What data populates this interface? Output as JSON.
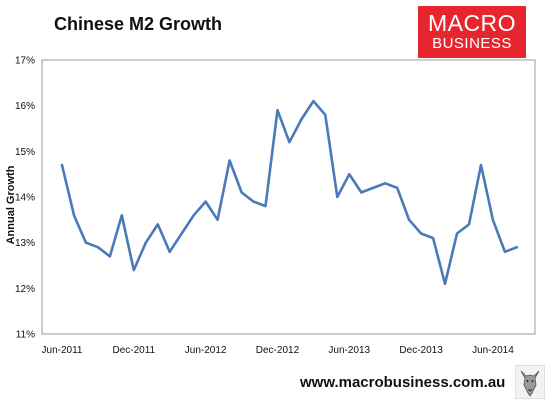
{
  "header": {
    "title": "Chinese M2 Growth",
    "logo_line1": "MACRO",
    "logo_line2": "BUSINESS"
  },
  "footer": {
    "website": "www.macrobusiness.com.au",
    "logo_icon": "wolf-icon"
  },
  "colors": {
    "series": "#4a7ab8",
    "logo_bg": "#e5262e",
    "axis": "#999999"
  },
  "chart_data": {
    "type": "line",
    "title": "Chinese M2 Growth",
    "xlabel": "",
    "ylabel": "Annual Growth",
    "ylim": [
      11,
      17
    ],
    "yticks": [
      "11%",
      "12%",
      "13%",
      "14%",
      "15%",
      "16%",
      "17%"
    ],
    "xticks": [
      "Jun-2011",
      "Dec-2011",
      "Jun-2012",
      "Dec-2012",
      "Jun-2013",
      "Dec-2013",
      "Jun-2014"
    ],
    "grid": false,
    "legend": "none",
    "x": [
      "Jun-2011",
      "Jul-2011",
      "Aug-2011",
      "Sep-2011",
      "Oct-2011",
      "Nov-2011",
      "Dec-2011",
      "Jan-2012",
      "Feb-2012",
      "Mar-2012",
      "Apr-2012",
      "May-2012",
      "Jun-2012",
      "Jul-2012",
      "Aug-2012",
      "Sep-2012",
      "Oct-2012",
      "Nov-2012",
      "Dec-2012",
      "Jan-2013",
      "Feb-2013",
      "Mar-2013",
      "Apr-2013",
      "May-2013",
      "Jun-2013",
      "Jul-2013",
      "Aug-2013",
      "Sep-2013",
      "Oct-2013",
      "Nov-2013",
      "Dec-2013",
      "Jan-2014",
      "Feb-2014",
      "Mar-2014",
      "Apr-2014",
      "May-2014",
      "Jun-2014",
      "Jul-2014",
      "Aug-2014"
    ],
    "series": [
      {
        "values": [
          14.7,
          13.6,
          13.0,
          12.9,
          12.7,
          13.6,
          12.4,
          13.0,
          13.4,
          12.8,
          13.2,
          13.6,
          13.9,
          13.5,
          14.8,
          14.1,
          13.9,
          13.8,
          15.9,
          15.2,
          15.7,
          16.1,
          15.8,
          14.0,
          14.5,
          14.1,
          14.2,
          14.3,
          14.2,
          13.5,
          13.2,
          13.1,
          12.1,
          13.2,
          13.4,
          14.7,
          13.5,
          12.8,
          12.9
        ]
      }
    ]
  }
}
